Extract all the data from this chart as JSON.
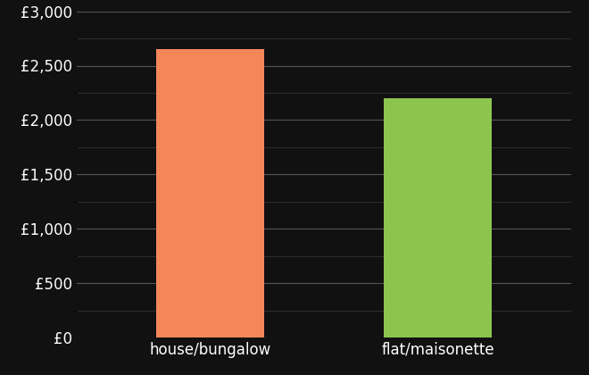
{
  "categories": [
    "house/bungalow",
    "flat/maisonette"
  ],
  "values": [
    2650,
    2200
  ],
  "bar_colors": [
    "#F4875A",
    "#8DC44E"
  ],
  "background_color": "#111111",
  "text_color": "#ffffff",
  "ylim": [
    0,
    3000
  ],
  "yticks": [
    0,
    500,
    1000,
    1500,
    2000,
    2500,
    3000
  ],
  "tick_label_fontsize": 12,
  "category_label_fontsize": 12,
  "major_grid_color": "#555555",
  "minor_grid_color": "#333333",
  "bar_width": 0.22,
  "x_positions": [
    0.27,
    0.73
  ]
}
